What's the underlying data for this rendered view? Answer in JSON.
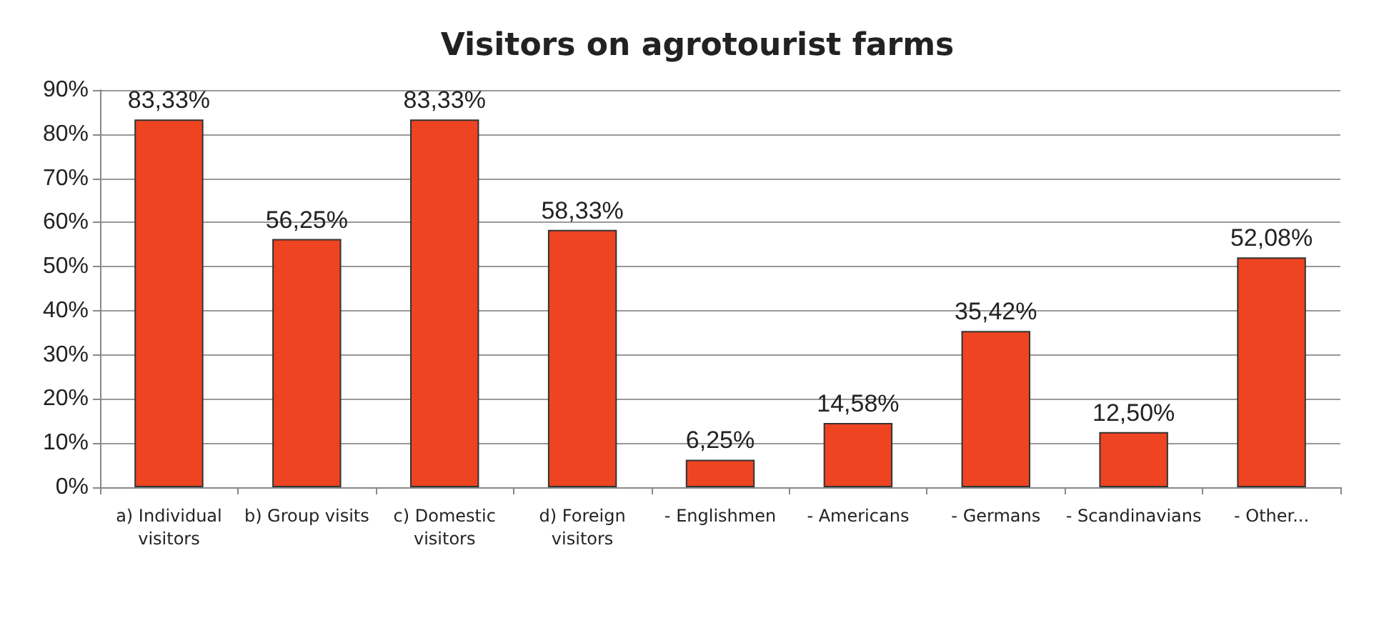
{
  "chart_data": {
    "type": "bar",
    "title": "Visitors on agrotourist farms",
    "categories": [
      "a) Individual visitors",
      "b) Group visits",
      "c) Domestic visitors",
      "d) Foreign visitors",
      "- Englishmen",
      "- Americans",
      "- Germans",
      "- Scandinavians",
      "- Other..."
    ],
    "values": [
      83.33,
      56.25,
      83.33,
      58.33,
      6.25,
      14.58,
      35.42,
      12.5,
      52.08
    ],
    "value_labels": [
      "83,33%",
      "56,25%",
      "83,33%",
      "58,33%",
      "6,25%",
      "14,58%",
      "35,42%",
      "12,50%",
      "52,08%"
    ],
    "color": "#ee4422",
    "ylim": [
      0,
      90
    ],
    "yticks": [
      {
        "value": 0,
        "label": "0%"
      },
      {
        "value": 10,
        "label": "10%"
      },
      {
        "value": 20,
        "label": "20%"
      },
      {
        "value": 30,
        "label": "30%"
      },
      {
        "value": 40,
        "label": "40%"
      },
      {
        "value": 50,
        "label": "50%"
      },
      {
        "value": 60,
        "label": "60%"
      },
      {
        "value": 70,
        "label": "70%"
      },
      {
        "value": 80,
        "label": "80%"
      },
      {
        "value": 90,
        "label": "90%"
      }
    ],
    "grid": "y"
  }
}
